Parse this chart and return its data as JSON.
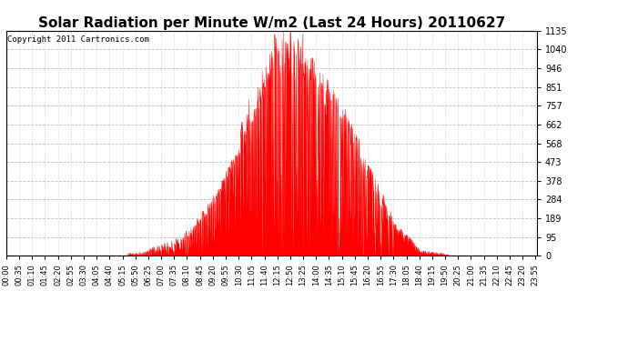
{
  "title": "Solar Radiation per Minute W/m2 (Last 24 Hours) 20110627",
  "copyright": "Copyright 2011 Cartronics.com",
  "bg_color": "#ffffff",
  "plot_bg_color": "#ffffff",
  "fill_color": "#ff0000",
  "line_color": "#ff0000",
  "grid_color": "#bbbbbb",
  "y_max": 1135.0,
  "y_min": 0.0,
  "y_ticks": [
    0.0,
    94.6,
    189.2,
    283.8,
    378.3,
    472.9,
    567.5,
    662.1,
    756.7,
    851.2,
    945.8,
    1040.4,
    1135.0
  ],
  "x_tick_labels": [
    "00:00",
    "00:35",
    "01:10",
    "01:45",
    "02:20",
    "02:55",
    "03:30",
    "04:05",
    "04:40",
    "05:15",
    "05:50",
    "06:25",
    "07:00",
    "07:35",
    "08:10",
    "08:45",
    "09:20",
    "09:55",
    "10:30",
    "11:05",
    "11:40",
    "12:15",
    "12:50",
    "13:25",
    "14:00",
    "14:35",
    "15:10",
    "15:45",
    "16:20",
    "16:55",
    "17:30",
    "18:05",
    "18:40",
    "19:15",
    "19:50",
    "20:25",
    "21:00",
    "21:35",
    "22:10",
    "22:45",
    "23:20",
    "23:55"
  ],
  "title_fontsize": 11,
  "copyright_fontsize": 6.5,
  "tick_fontsize": 6,
  "ytick_fontsize": 7
}
